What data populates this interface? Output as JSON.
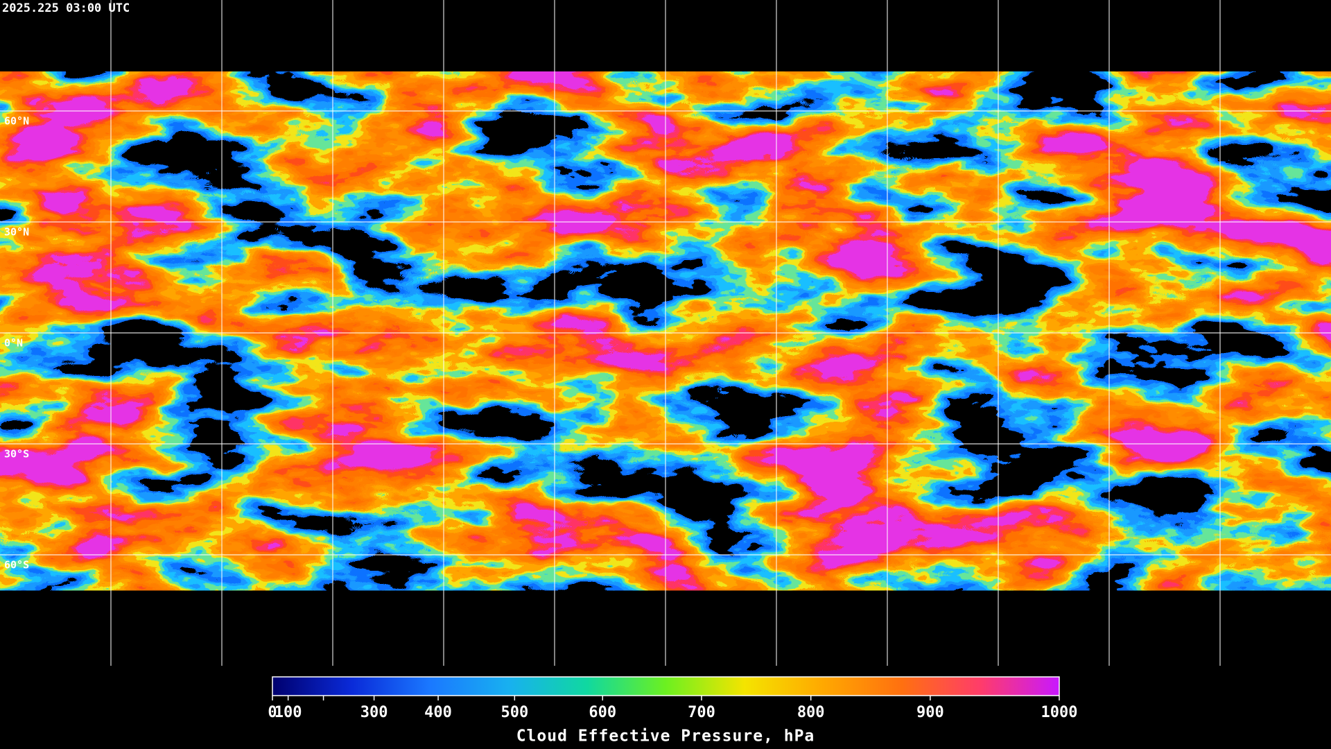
{
  "title": "2025.225 03:00 UTC",
  "map": {
    "latitude_labels": [
      "60°N",
      "30°N",
      "0°N",
      "30°S",
      "60°S"
    ]
  },
  "colorbar": {
    "title": "Cloud Effective Pressure, hPa",
    "range": [
      0,
      1000
    ],
    "ticks": [
      0,
      100,
      {
        "value": 200,
        "label": null
      },
      300,
      400,
      500,
      600,
      700,
      800,
      900,
      1000
    ],
    "colormap": [
      "#00006e",
      "#0a2ad8",
      "#1a78ff",
      "#18b0f0",
      "#10d8a0",
      "#6cf020",
      "#f4e400",
      "#ffa800",
      "#ff7010",
      "#ff3c6a",
      "#c818ff"
    ]
  }
}
